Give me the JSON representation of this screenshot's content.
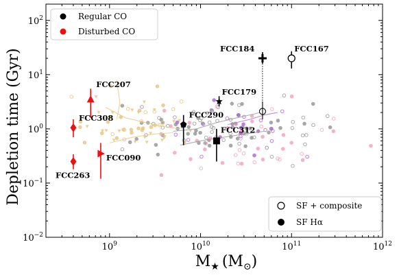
{
  "chart_data": {
    "type": "scatter",
    "xlabel": "M",
    "xlabel_sub": "★",
    "xlabel_unit": "(M",
    "xlabel_unit_sub": "⊙",
    "xlabel_close": ")",
    "ylabel": "Depletion time (Gyr)",
    "xscale": "log",
    "yscale": "log",
    "xlim": [
      200000000.0,
      1000000000000.0
    ],
    "ylim": [
      0.01,
      200
    ],
    "x_ticks": [
      {
        "value": 1000000000.0,
        "base": "10",
        "exp": "9"
      },
      {
        "value": 10000000000.0,
        "base": "10",
        "exp": "10"
      },
      {
        "value": 100000000000.0,
        "base": "10",
        "exp": "11"
      },
      {
        "value": 1000000000000.0,
        "base": "10",
        "exp": "12"
      }
    ],
    "y_ticks": [
      {
        "value": 0.01,
        "base": "10",
        "exp": "−2"
      },
      {
        "value": 0.1,
        "base": "10",
        "exp": "−1"
      },
      {
        "value": 1,
        "base": "10",
        "exp": "0"
      },
      {
        "value": 10,
        "base": "10",
        "exp": "1"
      },
      {
        "value": 100,
        "base": "10",
        "exp": "2"
      }
    ],
    "legend_top": {
      "placement": "top-left",
      "entries": [
        {
          "label": "Regular CO",
          "color": "#000000"
        },
        {
          "label": "Disturbed CO",
          "color": "#ee1111"
        }
      ]
    },
    "legend_bottom": {
      "placement": "bottom-right",
      "entries": [
        {
          "label": "SF + composite",
          "marker": "open"
        },
        {
          "label": "SF Hα",
          "marker": "filled"
        }
      ]
    },
    "galaxies": [
      {
        "name": "FCC184",
        "x": 48000000000.0,
        "y": 20,
        "yerr": [
          16,
          26
        ],
        "marker": "plus",
        "color": "#000000",
        "label_dx": -62,
        "label_dy": -10
      },
      {
        "name": "FCC167",
        "x": 100000000000.0,
        "y": 20,
        "yerr": [
          13,
          27
        ],
        "marker": "circle-open",
        "color": "#000000",
        "label_dx": 4,
        "label_dy": -10
      },
      {
        "name": "FCC179",
        "x": 16000000000.0,
        "y": 3.2,
        "yerr": [
          2.6,
          4.0
        ],
        "marker": "star",
        "color": "#000000",
        "label_dx": 4,
        "label_dy": -10
      },
      {
        "name": "FCC290",
        "x": 6500000000.0,
        "y": 1.2,
        "yerr": [
          0.5,
          1.8
        ],
        "marker": "pentagon",
        "color": "#000000",
        "label_dx": 8,
        "label_dy": -10
      },
      {
        "name": "FCC312",
        "x": 15000000000.0,
        "y": 0.6,
        "yerr": [
          0.25,
          1.0
        ],
        "marker": "square",
        "color": "#000000",
        "label_dx": 6,
        "label_dy": -12
      },
      {
        "name": "FCC207",
        "x": 620000000.0,
        "y": 3.5,
        "yerr": [
          1.6,
          5.5
        ],
        "marker": "triangle-up",
        "color": "#ee1111",
        "label_dx": 8,
        "label_dy": -18
      },
      {
        "name": "FCC308",
        "x": 400000000.0,
        "y": 1.05,
        "yerr": [
          0.7,
          1.5
        ],
        "marker": "diamond",
        "color": "#ee1111",
        "label_dx": 8,
        "label_dy": -10
      },
      {
        "name": "FCC090",
        "x": 800000000.0,
        "y": 0.35,
        "yerr": [
          0.12,
          0.55
        ],
        "marker": "triangle-right",
        "color": "#ee1111",
        "label_dx": 8,
        "label_dy": 10
      },
      {
        "name": "FCC263",
        "x": 400000000.0,
        "y": 0.25,
        "yerr": [
          0.18,
          0.34
        ],
        "marker": "diamond",
        "color": "#ee1111",
        "label_dx": 0,
        "label_dy": 24
      }
    ],
    "background_samples": [
      {
        "name": "grey",
        "color": "#9a9a9a",
        "cx": 15000000000.0,
        "cy": 1.0,
        "sx": 0.55,
        "sy": 0.25,
        "n": 90
      },
      {
        "name": "pink",
        "color": "#f2a6c4",
        "cx": 30000000000.0,
        "cy": 0.6,
        "sx": 0.55,
        "sy": 0.45,
        "n": 45
      },
      {
        "name": "purple",
        "color": "#b06bd1",
        "cx": 30000000000.0,
        "cy": 1.2,
        "sx": 0.4,
        "sy": 0.25,
        "n": 25
      },
      {
        "name": "gold",
        "color": "#e8c784",
        "cx": 1800000000.0,
        "cy": 1.2,
        "sx": 0.3,
        "sy": 0.25,
        "n": 55
      }
    ]
  }
}
